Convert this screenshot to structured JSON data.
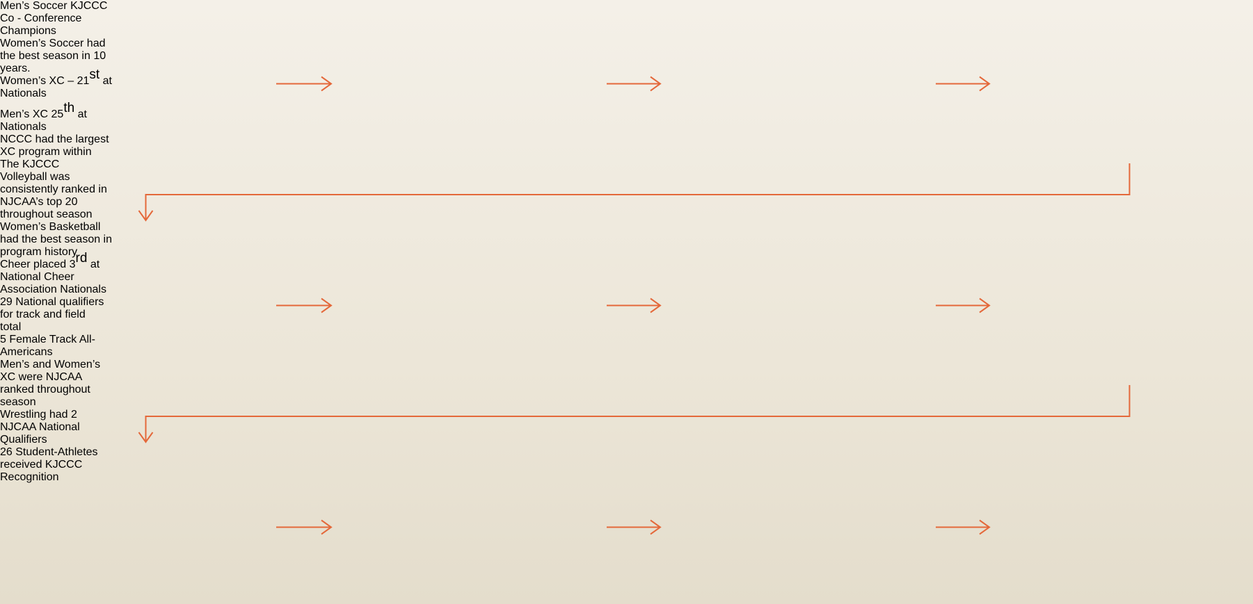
{
  "nodes": [
    {
      "paragraphs": [
        [
          [
            "Men’s Soccer KJCCC"
          ],
          [
            "Co - Conference"
          ],
          [
            "Champions"
          ]
        ]
      ]
    },
    {
      "paragraphs": [
        [
          [
            "Women’s Soccer had"
          ],
          [
            "the best season in 10"
          ],
          [
            "years."
          ]
        ]
      ]
    },
    {
      "paragraphs": [
        [
          [
            "Women’s XC – 21",
            {
              "sup": "st"
            },
            " at"
          ],
          [
            "Nationals"
          ]
        ],
        [
          [
            "Men’s XC 25",
            {
              "sup": "th"
            },
            " at"
          ],
          [
            "Nationals"
          ]
        ]
      ]
    },
    {
      "paragraphs": [
        [
          [
            "NCCC had the largest"
          ],
          [
            "XC program within"
          ],
          [
            "The KJCCC"
          ]
        ]
      ]
    },
    {
      "paragraphs": [
        [
          [
            "Volleyball was"
          ],
          [
            "consistently ranked in"
          ],
          [
            "NJCAA’s top 20"
          ],
          [
            "throughout season"
          ]
        ]
      ]
    },
    {
      "paragraphs": [
        [
          [
            "Women’s Basketball"
          ],
          [
            "had the best season in"
          ],
          [
            "program history"
          ]
        ]
      ]
    },
    {
      "paragraphs": [
        [
          [
            "Cheer placed 3",
            {
              "sup": "rd"
            },
            " at"
          ],
          [
            "National Cheer"
          ],
          [
            "Association Nationals"
          ]
        ]
      ]
    },
    {
      "paragraphs": [
        [
          [
            "29 National qualifiers"
          ],
          [
            "for track and field"
          ],
          [
            "total"
          ]
        ]
      ]
    },
    {
      "paragraphs": [
        [
          [
            "5 Female Track All-"
          ],
          [
            "Americans"
          ]
        ]
      ]
    },
    {
      "paragraphs": [
        [
          [
            "Men’s and Women’s"
          ],
          [
            "XC were NJCAA"
          ],
          [
            "ranked throughout"
          ],
          [
            "season"
          ]
        ]
      ]
    },
    {
      "paragraphs": [
        [
          [
            "Wrestling had 2"
          ],
          [
            "NJCAA National"
          ],
          [
            "Qualifiers"
          ]
        ]
      ]
    },
    {
      "paragraphs": [
        [
          [
            "26 Student-Athletes"
          ],
          [
            "received KJCCC"
          ],
          [
            "Recognition"
          ]
        ]
      ]
    }
  ]
}
